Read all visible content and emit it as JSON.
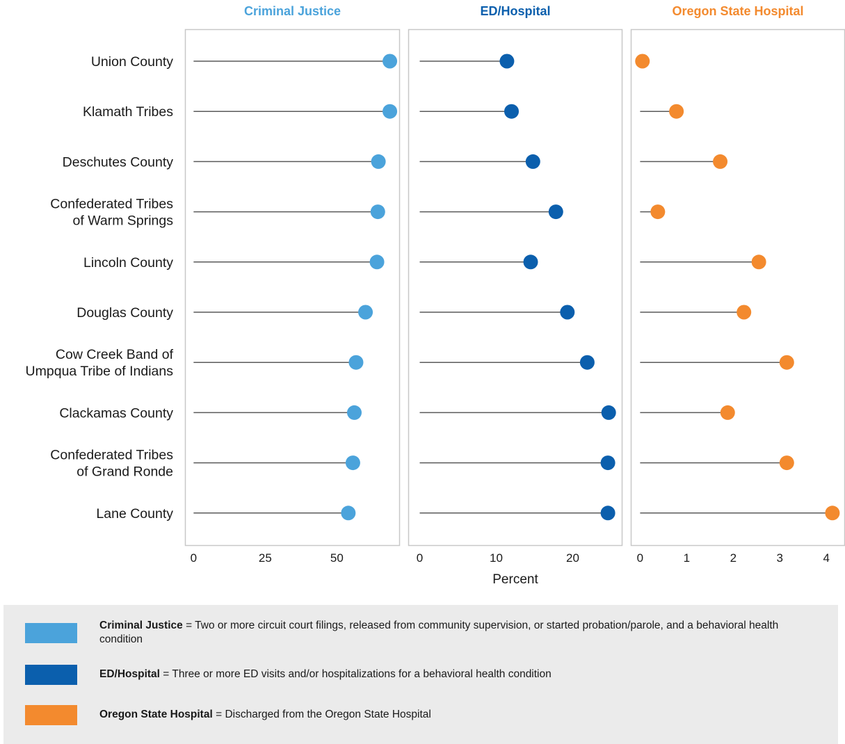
{
  "chart_data": {
    "type": "lollipop",
    "xlabel": "Percent",
    "categories": [
      "Union County",
      "Klamath Tribes",
      "Deschutes County",
      "Confederated Tribes of Warm Springs",
      "Lincoln County",
      "Douglas County",
      "Cow Creek Band of Umpqua Tribe of Indians",
      "Clackamas County",
      "Confederated Tribes of Grand Ronde",
      "Lane County"
    ],
    "category_lines": [
      [
        "Union County"
      ],
      [
        "Klamath Tribes"
      ],
      [
        "Deschutes County"
      ],
      [
        "Confederated Tribes",
        "of Warm Springs"
      ],
      [
        "Lincoln County"
      ],
      [
        "Douglas County"
      ],
      [
        "Cow Creek Band of",
        "Umpqua Tribe of Indians"
      ],
      [
        "Clackamas County"
      ],
      [
        "Confederated Tribes",
        "of Grand Ronde"
      ],
      [
        "Lane County"
      ]
    ],
    "series": [
      {
        "name": "Criminal Justice",
        "color": "#4ba3db",
        "xlim": [
          -3,
          72
        ],
        "ticks": [
          0,
          25,
          50
        ],
        "values": [
          68.5,
          68.5,
          64.5,
          64.3,
          64.0,
          60.0,
          56.7,
          56.1,
          55.6,
          54.0
        ]
      },
      {
        "name": "ED/Hospital",
        "color": "#0b5fad",
        "xlim": [
          -1.5,
          26.5
        ],
        "ticks": [
          0,
          10,
          20
        ],
        "values": [
          11.4,
          12.0,
          14.8,
          17.8,
          14.5,
          19.3,
          21.9,
          24.7,
          24.6,
          24.6
        ]
      },
      {
        "name": "Oregon State Hospital",
        "color": "#f38a2e",
        "xlim": [
          -0.2,
          4.4
        ],
        "ticks": [
          0,
          1,
          2,
          3,
          4
        ],
        "values": [
          0.05,
          0.78,
          1.72,
          0.38,
          2.55,
          2.23,
          3.15,
          1.88,
          3.15,
          4.13
        ]
      }
    ]
  },
  "legend": [
    {
      "label": "Criminal Justice",
      "text": "= Two or more circuit court filings, released from community supervision, or started probation/parole, and a behavioral health condition",
      "color": "#4ba3db"
    },
    {
      "label": "ED/Hospital",
      "text": "= Three or more ED visits and/or hospitalizations for a behavioral health condition",
      "color": "#0b5fad"
    },
    {
      "label": "Oregon State Hospital",
      "text": "= Discharged from the Oregon State Hospital",
      "color": "#f38a2e"
    }
  ],
  "colors": {
    "panel_border": "#c8c8c8",
    "stem": "#5a5a5a",
    "text": "#1a1a1a",
    "legend_bg": "#ebebeb"
  }
}
